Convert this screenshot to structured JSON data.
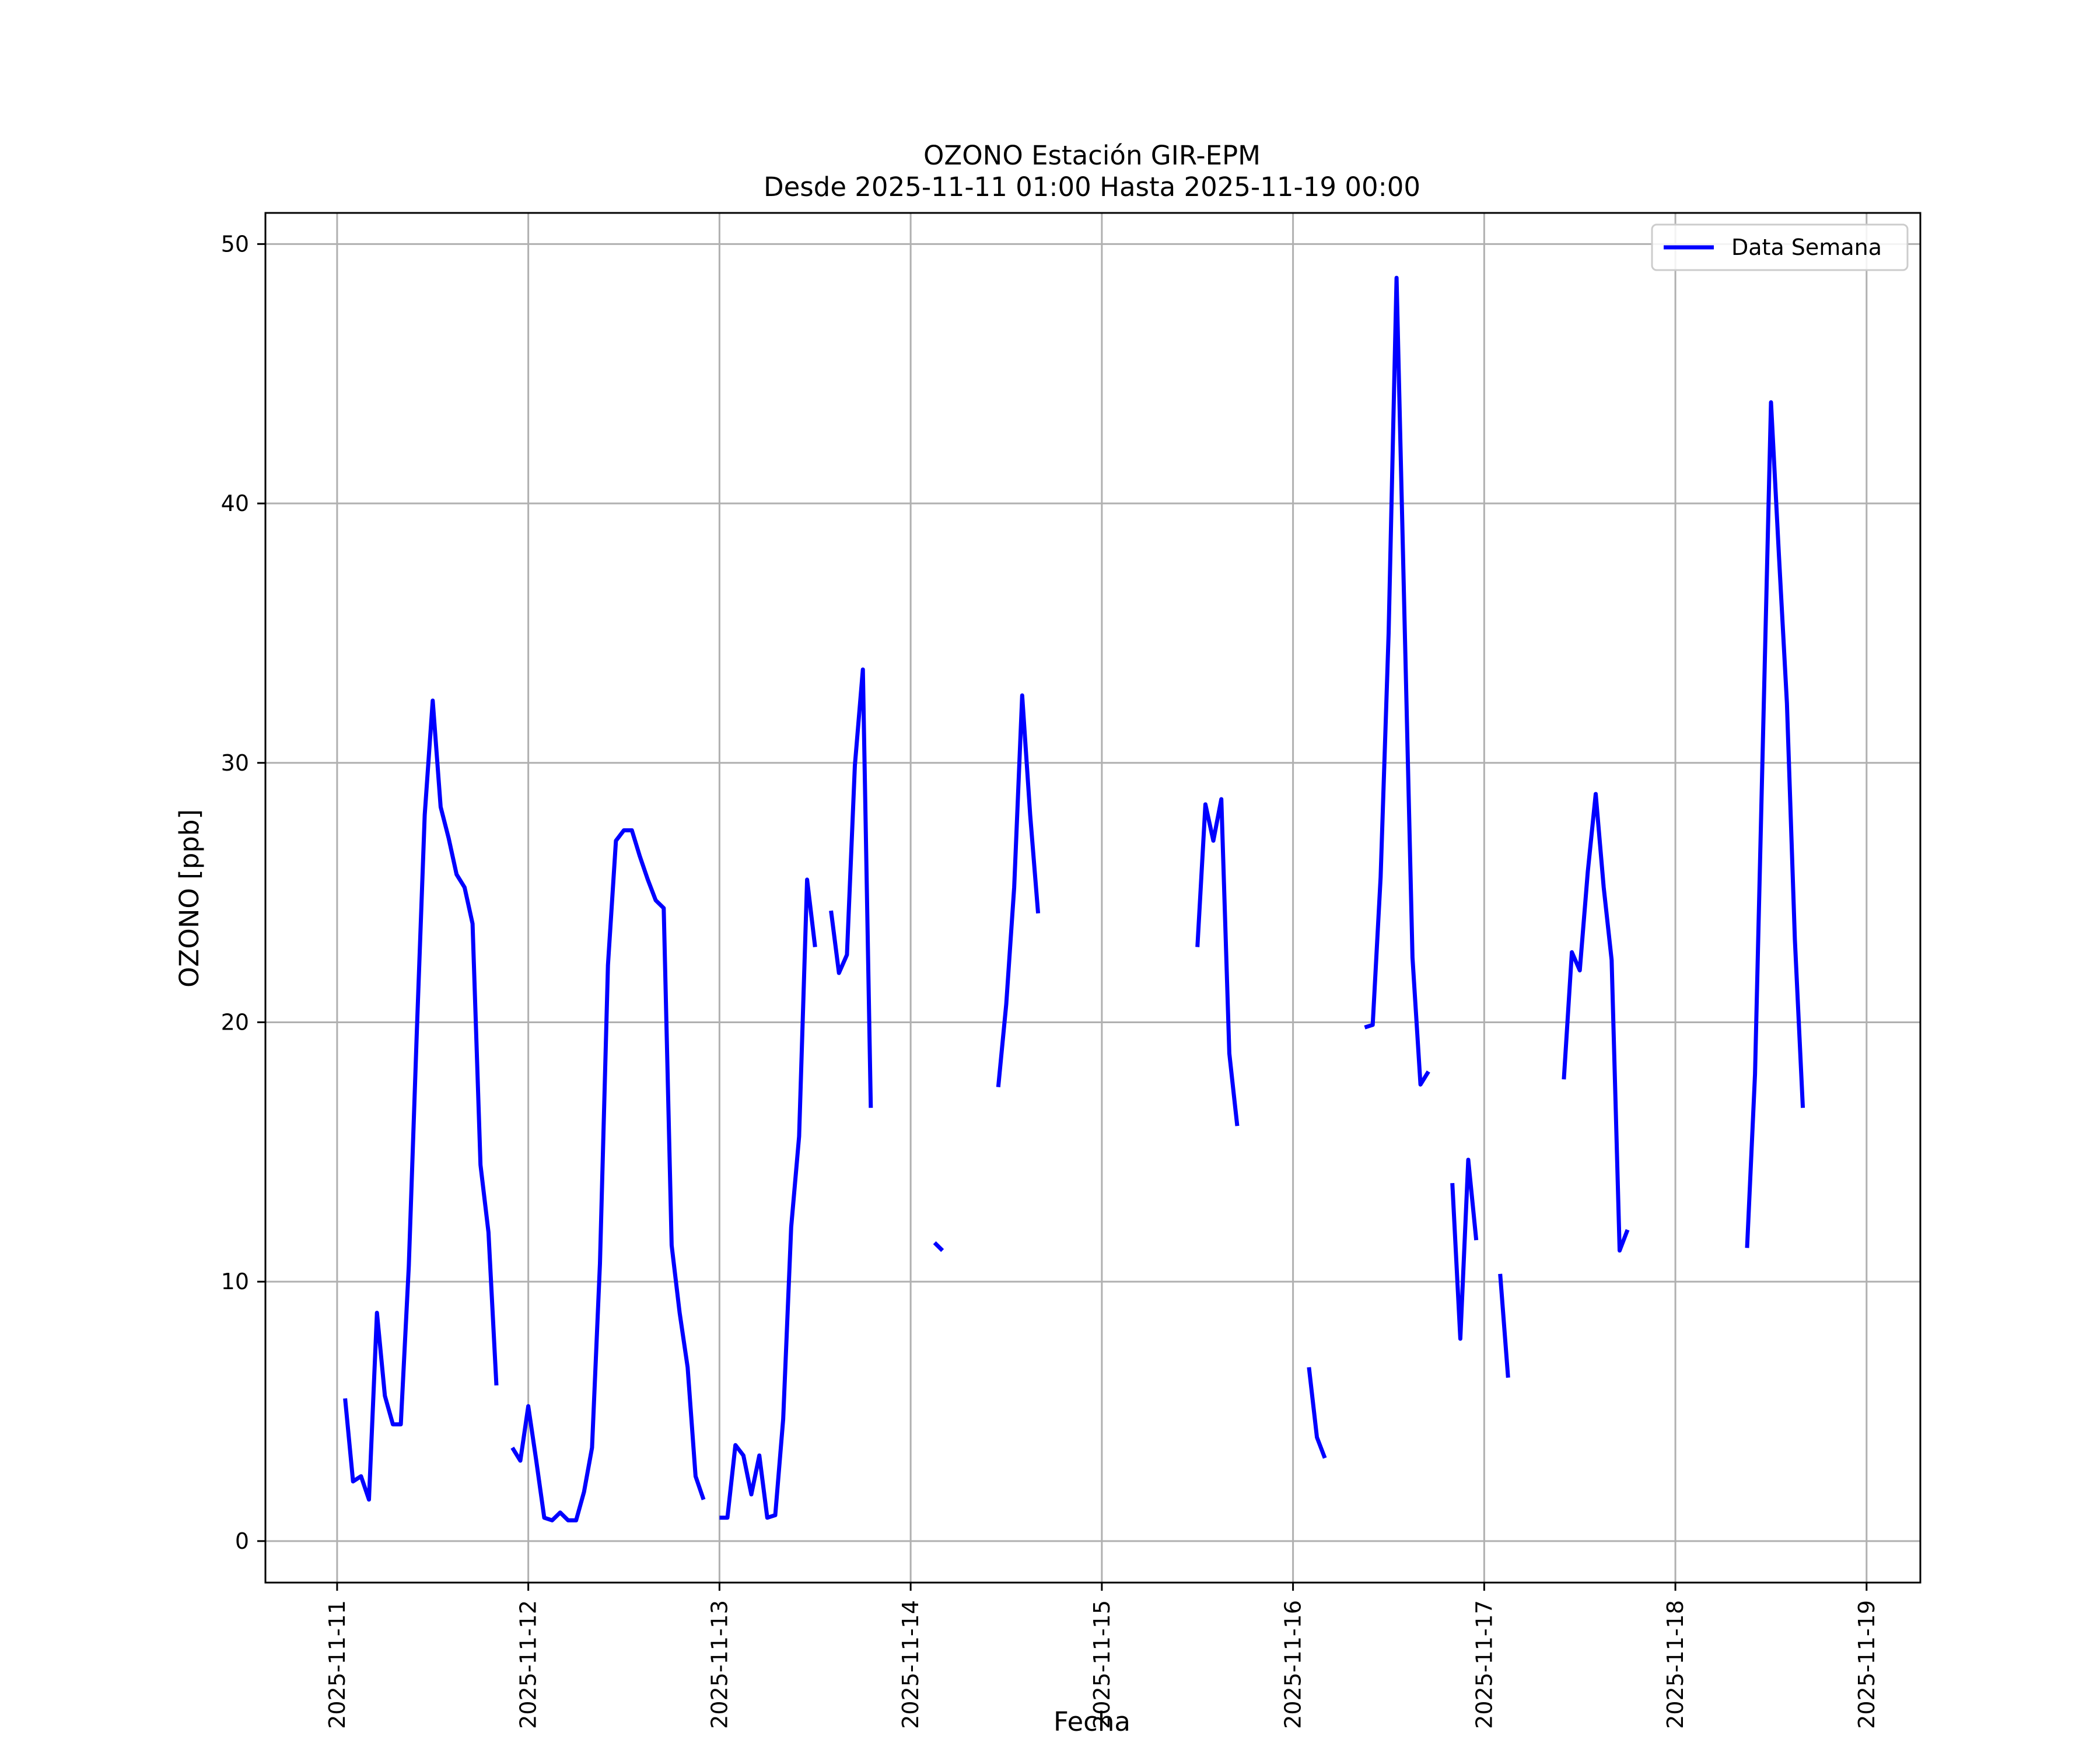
{
  "chart_data": {
    "type": "line",
    "title": "OZONO Estación GIR-EPM",
    "subtitle": "Desde 2025-11-11 01:00 Hasta 2025-11-19 00:00",
    "xlabel": "Fecha",
    "ylabel": "OZONO [ppb]",
    "ylim": [
      -1.6,
      51.2
    ],
    "xlim": [
      "2025-11-10 15:00",
      "2025-11-19 06:45"
    ],
    "x_ticks": [
      "2025-11-11",
      "2025-11-12",
      "2025-11-13",
      "2025-11-14",
      "2025-11-15",
      "2025-11-16",
      "2025-11-17",
      "2025-11-18",
      "2025-11-19"
    ],
    "y_ticks": [
      0,
      10,
      20,
      30,
      40,
      50
    ],
    "grid": true,
    "legend_position": "top-right",
    "series": [
      {
        "name": "Data Semana",
        "color": "#0000ff",
        "points": [
          [
            "2025-11-11 01:00",
            5.5
          ],
          [
            "2025-11-11 02:00",
            2.3
          ],
          [
            "2025-11-11 03:00",
            2.5
          ],
          [
            "2025-11-11 04:00",
            1.6
          ],
          [
            "2025-11-11 05:00",
            8.8
          ],
          [
            "2025-11-11 06:00",
            5.6
          ],
          [
            "2025-11-11 07:00",
            4.5
          ],
          [
            "2025-11-11 08:00",
            4.5
          ],
          [
            "2025-11-11 09:00",
            10.6
          ],
          [
            "2025-11-11 10:00",
            19.6
          ],
          [
            "2025-11-11 11:00",
            28.0
          ],
          [
            "2025-11-11 12:00",
            32.4
          ],
          [
            "2025-11-11 13:00",
            28.3
          ],
          [
            "2025-11-11 14:00",
            27.1
          ],
          [
            "2025-11-11 15:00",
            25.7
          ],
          [
            "2025-11-11 16:00",
            25.2
          ],
          [
            "2025-11-11 17:00",
            23.8
          ],
          [
            "2025-11-11 18:00",
            14.5
          ],
          [
            "2025-11-11 19:00",
            11.9
          ],
          [
            "2025-11-11 20:00",
            6.0
          ],
          null,
          [
            "2025-11-11 22:00",
            3.6
          ],
          [
            "2025-11-11 23:00",
            3.1
          ],
          [
            "2025-11-12 00:00",
            5.2
          ],
          [
            "2025-11-12 01:00",
            3.1
          ],
          [
            "2025-11-12 02:00",
            0.9
          ],
          [
            "2025-11-12 03:00",
            0.8
          ],
          [
            "2025-11-12 04:00",
            1.1
          ],
          [
            "2025-11-12 05:00",
            0.8
          ],
          [
            "2025-11-12 06:00",
            0.8
          ],
          [
            "2025-11-12 07:00",
            1.9
          ],
          [
            "2025-11-12 08:00",
            3.6
          ],
          [
            "2025-11-12 09:00",
            10.7
          ],
          [
            "2025-11-12 10:00",
            22.2
          ],
          [
            "2025-11-12 11:00",
            27.0
          ],
          [
            "2025-11-12 12:00",
            27.4
          ],
          [
            "2025-11-12 13:00",
            27.4
          ],
          [
            "2025-11-12 14:00",
            26.4
          ],
          [
            "2025-11-12 15:00",
            25.5
          ],
          [
            "2025-11-12 16:00",
            24.7
          ],
          [
            "2025-11-12 17:00",
            24.4
          ],
          [
            "2025-11-12 18:00",
            11.4
          ],
          [
            "2025-11-12 19:00",
            8.8
          ],
          [
            "2025-11-12 20:00",
            6.7
          ],
          [
            "2025-11-12 21:00",
            2.5
          ],
          [
            "2025-11-12 22:00",
            1.6
          ],
          null,
          [
            "2025-11-13 00:00",
            0.9
          ],
          [
            "2025-11-13 01:00",
            0.9
          ],
          [
            "2025-11-13 02:00",
            3.7
          ],
          [
            "2025-11-13 03:00",
            3.3
          ],
          [
            "2025-11-13 04:00",
            1.8
          ],
          [
            "2025-11-13 05:00",
            3.3
          ],
          [
            "2025-11-13 06:00",
            0.9
          ],
          [
            "2025-11-13 07:00",
            1.0
          ],
          [
            "2025-11-13 08:00",
            4.7
          ],
          [
            "2025-11-13 09:00",
            12.1
          ],
          [
            "2025-11-13 10:00",
            15.6
          ],
          [
            "2025-11-13 11:00",
            25.5
          ],
          [
            "2025-11-13 12:00",
            22.9
          ],
          null,
          [
            "2025-11-13 14:00",
            24.3
          ],
          [
            "2025-11-13 15:00",
            21.9
          ],
          [
            "2025-11-13 16:00",
            22.6
          ],
          [
            "2025-11-13 17:00",
            29.9
          ],
          [
            "2025-11-13 18:00",
            33.6
          ],
          [
            "2025-11-13 19:00",
            16.7
          ],
          null,
          [
            "2025-11-14 03:00",
            11.5
          ],
          [
            "2025-11-14 04:00",
            11.2
          ],
          null,
          [
            "2025-11-14 11:00",
            17.5
          ],
          [
            "2025-11-14 12:00",
            20.7
          ],
          [
            "2025-11-14 13:00",
            25.2
          ],
          [
            "2025-11-14 14:00",
            32.6
          ],
          [
            "2025-11-14 15:00",
            28.0
          ],
          [
            "2025-11-14 16:00",
            24.2
          ],
          null,
          [
            "2025-11-15 12:00",
            22.9
          ],
          [
            "2025-11-15 13:00",
            28.4
          ],
          [
            "2025-11-15 14:00",
            27.0
          ],
          [
            "2025-11-15 15:00",
            28.6
          ],
          [
            "2025-11-15 16:00",
            18.8
          ],
          [
            "2025-11-15 17:00",
            16.0
          ],
          null,
          [
            "2025-11-16 02:00",
            6.7
          ],
          [
            "2025-11-16 03:00",
            4.0
          ],
          [
            "2025-11-16 04:00",
            3.2
          ],
          null,
          [
            "2025-11-16 09:00",
            19.8
          ],
          [
            "2025-11-16 10:00",
            19.9
          ],
          [
            "2025-11-16 11:00",
            25.6
          ],
          [
            "2025-11-16 12:00",
            35.0
          ],
          [
            "2025-11-16 13:00",
            48.7
          ],
          [
            "2025-11-16 14:00",
            35.5
          ],
          [
            "2025-11-16 15:00",
            22.5
          ],
          [
            "2025-11-16 16:00",
            17.6
          ],
          [
            "2025-11-16 17:00",
            18.1
          ],
          null,
          [
            "2025-11-16 20:00",
            13.8
          ],
          [
            "2025-11-16 21:00",
            7.8
          ],
          [
            "2025-11-16 22:00",
            14.7
          ],
          [
            "2025-11-16 23:00",
            11.6
          ],
          null,
          [
            "2025-11-17 02:00",
            10.3
          ],
          [
            "2025-11-17 03:00",
            6.3
          ],
          null,
          [
            "2025-11-17 10:00",
            17.8
          ],
          [
            "2025-11-17 11:00",
            22.7
          ],
          [
            "2025-11-17 12:00",
            22.0
          ],
          [
            "2025-11-17 13:00",
            25.8
          ],
          [
            "2025-11-17 14:00",
            28.8
          ],
          [
            "2025-11-17 15:00",
            25.2
          ],
          [
            "2025-11-17 16:00",
            22.4
          ],
          [
            "2025-11-17 17:00",
            11.2
          ],
          [
            "2025-11-17 18:00",
            12.0
          ],
          null,
          [
            "2025-11-18 09:00",
            11.3
          ],
          [
            "2025-11-18 10:00",
            18.0
          ],
          [
            "2025-11-18 11:00",
            31.0
          ],
          [
            "2025-11-18 12:00",
            43.9
          ],
          [
            "2025-11-18 13:00",
            38.0
          ],
          [
            "2025-11-18 14:00",
            32.3
          ],
          [
            "2025-11-18 15:00",
            23.2
          ],
          [
            "2025-11-18 16:00",
            16.7
          ]
        ]
      }
    ]
  }
}
